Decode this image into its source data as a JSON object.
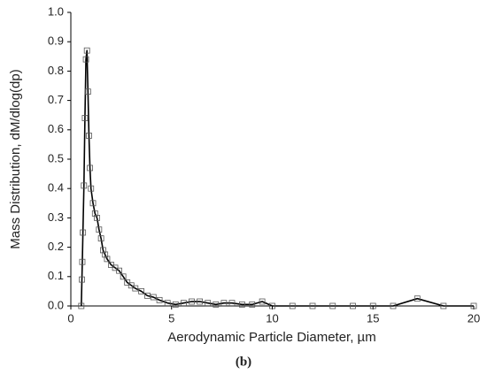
{
  "chart_data": {
    "type": "line",
    "x_label": "Aerodynamic Particle Diameter, µm",
    "y_label": "Mass Distribution, dM/dlog(dp)",
    "caption": "(b)",
    "x": [
      0.52,
      0.55,
      0.57,
      0.6,
      0.65,
      0.7,
      0.75,
      0.8,
      0.85,
      0.9,
      0.95,
      1.0,
      1.1,
      1.2,
      1.3,
      1.4,
      1.5,
      1.6,
      1.7,
      1.8,
      2.0,
      2.2,
      2.4,
      2.6,
      2.8,
      3.0,
      3.2,
      3.5,
      3.8,
      4.1,
      4.4,
      4.8,
      5.2,
      5.6,
      6.0,
      6.4,
      6.8,
      7.2,
      7.6,
      8.0,
      8.5,
      9.0,
      9.5,
      10.0,
      11.0,
      12.0,
      13.0,
      14.0,
      15.0,
      16.0,
      17.2,
      18.5,
      20.0
    ],
    "series": [
      {
        "color": "#000000",
        "marker": "square",
        "values": [
          0.0,
          0.09,
          0.15,
          0.25,
          0.41,
          0.64,
          0.84,
          0.87,
          0.73,
          0.58,
          0.47,
          0.4,
          0.35,
          0.315,
          0.3,
          0.26,
          0.23,
          0.19,
          0.175,
          0.16,
          0.14,
          0.13,
          0.12,
          0.1,
          0.08,
          0.07,
          0.06,
          0.05,
          0.035,
          0.03,
          0.02,
          0.01,
          0.005,
          0.01,
          0.015,
          0.015,
          0.01,
          0.005,
          0.01,
          0.01,
          0.005,
          0.005,
          0.015,
          0.0,
          0.0,
          0.0,
          0.0,
          0.0,
          0.0,
          0.0,
          0.025,
          0.0,
          0.0
        ]
      }
    ],
    "xlim": [
      0,
      20
    ],
    "xticks": [
      0,
      5,
      10,
      15,
      20
    ],
    "ylim": [
      0,
      1.0
    ],
    "yticks": [
      {
        "value": 0,
        "label": "0.0"
      },
      {
        "value": 0.1,
        "label": "0.1"
      },
      {
        "value": 0.2,
        "label": "0.2"
      },
      {
        "value": 0.3,
        "label": "0.3"
      },
      {
        "value": 0.4,
        "label": "0.4"
      },
      {
        "value": 0.5,
        "label": "0.5"
      },
      {
        "value": 0.6,
        "label": "0.6"
      },
      {
        "value": 0.7,
        "label": "0.7"
      },
      {
        "value": 0.8,
        "label": "0.8"
      },
      {
        "value": 0.9,
        "label": "0.9"
      },
      {
        "value": 1.0,
        "label": "1.0"
      }
    ],
    "grid": false
  }
}
